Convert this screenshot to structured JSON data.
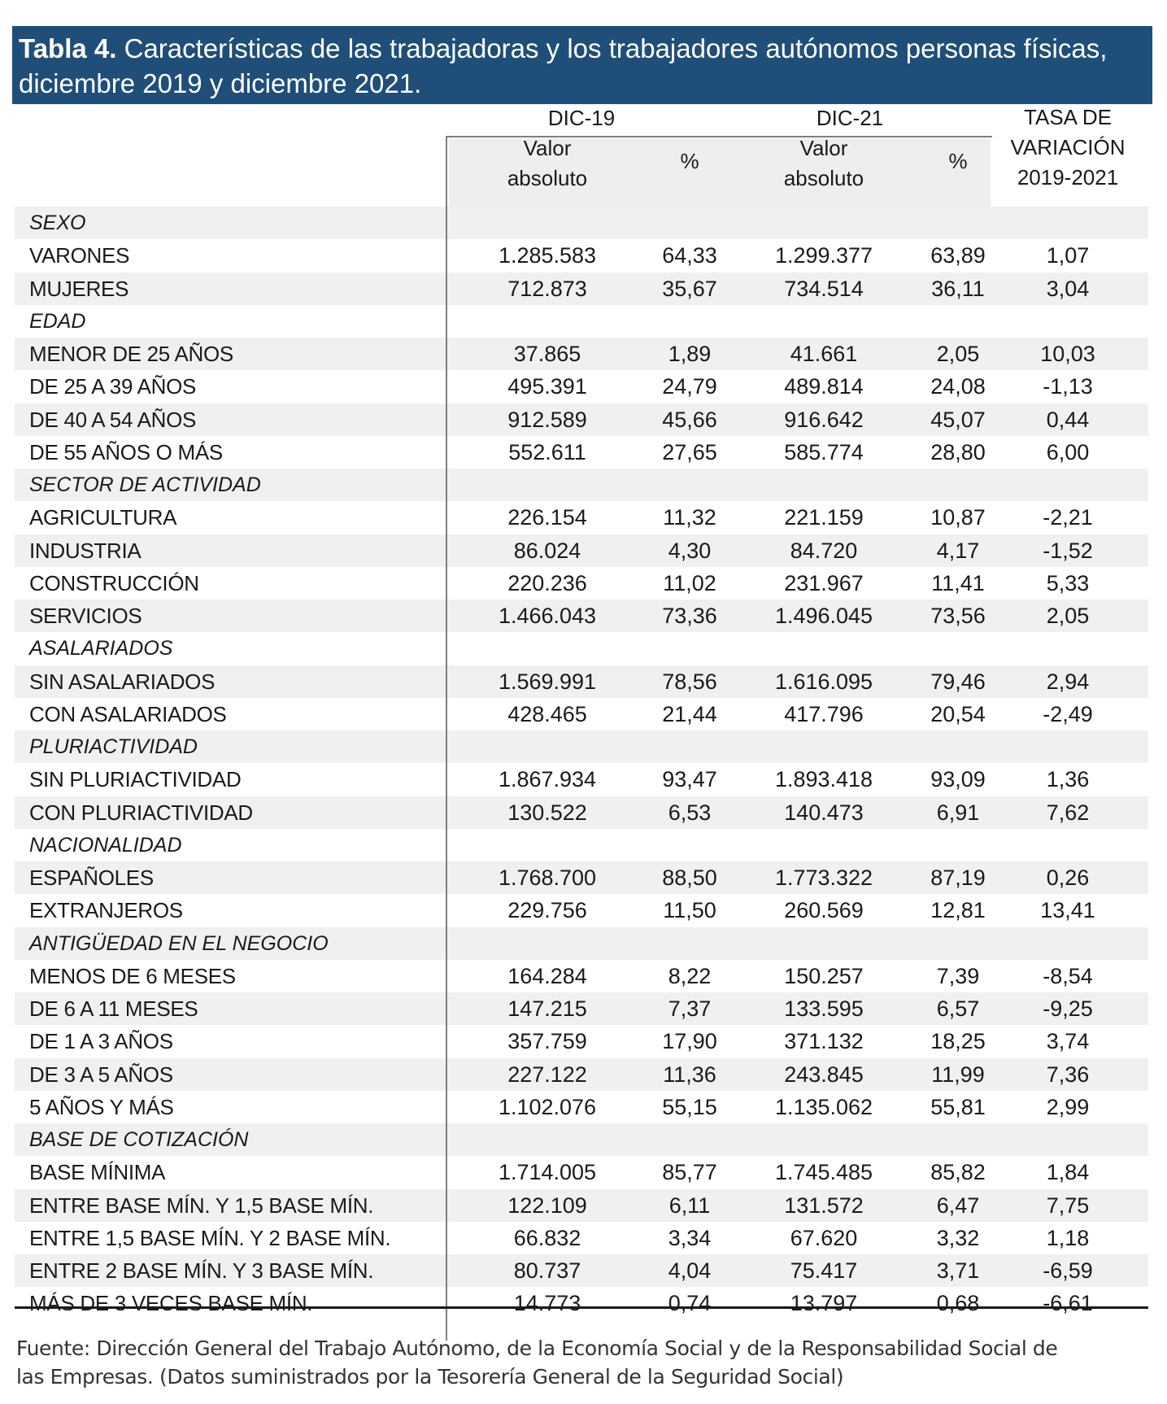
{
  "title": {
    "bold": "Tabla 4.",
    "line1": " Características de las trabajadoras y los trabajadores autónomos personas físicas,",
    "line2": "diciembre 2019 y diciembre 2021."
  },
  "header": {
    "dic19": "DIC-19",
    "dic21": "DIC-21",
    "tasa_line1": "TASA DE",
    "tasa_line2": "VARIACIÓN",
    "tasa_line3": "2019-2021",
    "valor_line1": "Valor",
    "valor_line2": "absoluto",
    "pct": "%"
  },
  "rows": [
    {
      "type": "cat",
      "label": "SEXO"
    },
    {
      "type": "data",
      "label": "VARONES",
      "v19": "1.285.583",
      "p19": "64,33",
      "v21": "1.299.377",
      "p21": "63,89",
      "tasa": "1,07"
    },
    {
      "type": "data",
      "label": "MUJERES",
      "v19": "712.873",
      "p19": "35,67",
      "v21": "734.514",
      "p21": "36,11",
      "tasa": "3,04"
    },
    {
      "type": "cat",
      "label": "EDAD"
    },
    {
      "type": "data",
      "label": "MENOR DE 25 AÑOS",
      "v19": "37.865",
      "p19": "1,89",
      "v21": "41.661",
      "p21": "2,05",
      "tasa": "10,03"
    },
    {
      "type": "data",
      "label": "DE 25 A 39 AÑOS",
      "v19": "495.391",
      "p19": "24,79",
      "v21": "489.814",
      "p21": "24,08",
      "tasa": "-1,13"
    },
    {
      "type": "data",
      "label": "DE 40 A 54 AÑOS",
      "v19": "912.589",
      "p19": "45,66",
      "v21": "916.642",
      "p21": "45,07",
      "tasa": "0,44"
    },
    {
      "type": "data",
      "label": "DE 55 AÑOS O MÁS",
      "v19": "552.611",
      "p19": "27,65",
      "v21": "585.774",
      "p21": "28,80",
      "tasa": "6,00"
    },
    {
      "type": "cat",
      "label": "SECTOR DE ACTIVIDAD"
    },
    {
      "type": "data",
      "label": "AGRICULTURA",
      "v19": "226.154",
      "p19": "11,32",
      "v21": "221.159",
      "p21": "10,87",
      "tasa": "-2,21"
    },
    {
      "type": "data",
      "label": "INDUSTRIA",
      "v19": "86.024",
      "p19": "4,30",
      "v21": "84.720",
      "p21": "4,17",
      "tasa": "-1,52"
    },
    {
      "type": "data",
      "label": "CONSTRUCCIÓN",
      "v19": "220.236",
      "p19": "11,02",
      "v21": "231.967",
      "p21": "11,41",
      "tasa": "5,33"
    },
    {
      "type": "data",
      "label": "SERVICIOS",
      "v19": "1.466.043",
      "p19": "73,36",
      "v21": "1.496.045",
      "p21": "73,56",
      "tasa": "2,05"
    },
    {
      "type": "cat",
      "label": "ASALARIADOS"
    },
    {
      "type": "data",
      "label": "SIN ASALARIADOS",
      "v19": "1.569.991",
      "p19": "78,56",
      "v21": "1.616.095",
      "p21": "79,46",
      "tasa": "2,94"
    },
    {
      "type": "data",
      "label": "CON ASALARIADOS",
      "v19": "428.465",
      "p19": "21,44",
      "v21": "417.796",
      "p21": "20,54",
      "tasa": "-2,49"
    },
    {
      "type": "cat",
      "label": "PLURIACTIVIDAD"
    },
    {
      "type": "data",
      "label": "SIN PLURIACTIVIDAD",
      "v19": "1.867.934",
      "p19": "93,47",
      "v21": "1.893.418",
      "p21": "93,09",
      "tasa": "1,36"
    },
    {
      "type": "data",
      "label": "CON PLURIACTIVIDAD",
      "v19": "130.522",
      "p19": "6,53",
      "v21": "140.473",
      "p21": "6,91",
      "tasa": "7,62"
    },
    {
      "type": "cat",
      "label": "NACIONALIDAD"
    },
    {
      "type": "data",
      "label": "ESPAÑOLES",
      "v19": "1.768.700",
      "p19": "88,50",
      "v21": "1.773.322",
      "p21": "87,19",
      "tasa": "0,26"
    },
    {
      "type": "data",
      "label": "EXTRANJEROS",
      "v19": "229.756",
      "p19": "11,50",
      "v21": "260.569",
      "p21": "12,81",
      "tasa": "13,41"
    },
    {
      "type": "cat",
      "label": "ANTIGÜEDAD EN EL NEGOCIO"
    },
    {
      "type": "data",
      "label": "MENOS DE 6 MESES",
      "v19": "164.284",
      "p19": "8,22",
      "v21": "150.257",
      "p21": "7,39",
      "tasa": "-8,54"
    },
    {
      "type": "data",
      "label": "DE 6 A 11 MESES",
      "v19": "147.215",
      "p19": "7,37",
      "v21": "133.595",
      "p21": "6,57",
      "tasa": "-9,25"
    },
    {
      "type": "data",
      "label": "DE 1 A 3 AÑOS",
      "v19": "357.759",
      "p19": "17,90",
      "v21": "371.132",
      "p21": "18,25",
      "tasa": "3,74"
    },
    {
      "type": "data",
      "label": "DE 3 A 5 AÑOS",
      "v19": "227.122",
      "p19": "11,36",
      "v21": "243.845",
      "p21": "11,99",
      "tasa": "7,36"
    },
    {
      "type": "data",
      "label": "5 AÑOS Y MÁS",
      "v19": "1.102.076",
      "p19": "55,15",
      "v21": "1.135.062",
      "p21": "55,81",
      "tasa": "2,99"
    },
    {
      "type": "cat",
      "label": "BASE DE COTIZACIÓN"
    },
    {
      "type": "data",
      "label": "BASE MÍNIMA",
      "v19": "1.714.005",
      "p19": "85,77",
      "v21": "1.745.485",
      "p21": "85,82",
      "tasa": "1,84"
    },
    {
      "type": "data",
      "label": "ENTRE BASE MÍN. Y 1,5 BASE MÍN.",
      "v19": "122.109",
      "p19": "6,11",
      "v21": "131.572",
      "p21": "6,47",
      "tasa": "7,75"
    },
    {
      "type": "data",
      "label": "ENTRE 1,5 BASE MÍN. Y 2 BASE MÍN.",
      "v19": "66.832",
      "p19": "3,34",
      "v21": "67.620",
      "p21": "3,32",
      "tasa": "1,18"
    },
    {
      "type": "data",
      "label": "ENTRE 2 BASE MÍN. Y 3 BASE MÍN.",
      "v19": "80.737",
      "p19": "4,04",
      "v21": "75.417",
      "p21": "3,71",
      "tasa": "-6,59"
    },
    {
      "type": "data",
      "label": "MÁS DE 3 VECES BASE MÍN.",
      "v19": "14.773",
      "p19": "0,74",
      "v21": "13.797",
      "p21": "0,68",
      "tasa": "-6,61"
    }
  ],
  "source": {
    "line1": "Fuente: Dirección General del Trabajo Autónomo, de la Economía Social y de la Responsabilidad Social de",
    "line2": "las Empresas. (Datos suministrados por la Tesorería General de la Seguridad Social)"
  },
  "colors": {
    "title_bg": "#1f4e79",
    "title_text": "#ffffff",
    "row_shade": "#f0f0f0"
  }
}
